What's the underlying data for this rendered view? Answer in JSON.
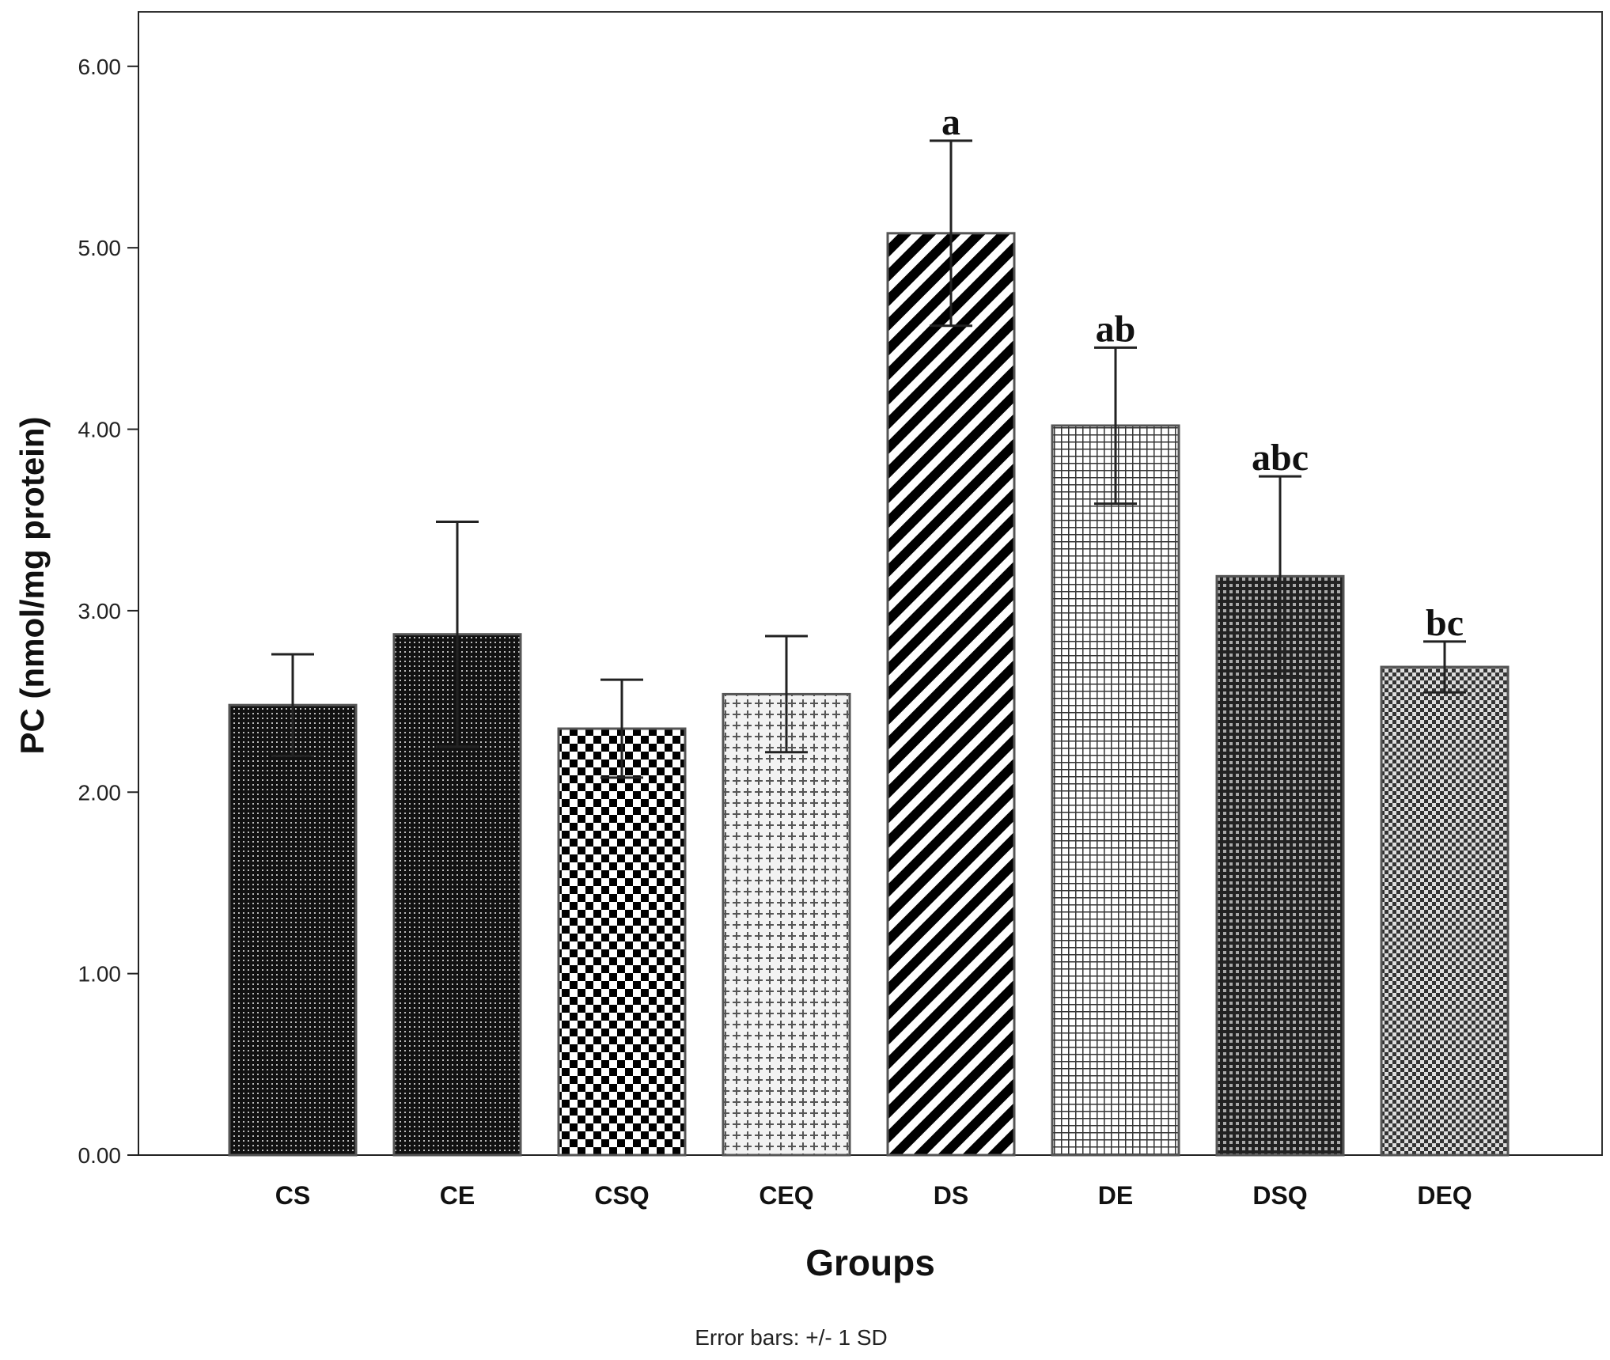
{
  "chart_data": {
    "type": "bar",
    "title": "",
    "xlabel": "Groups",
    "ylabel": "PC (nmol/mg protein)",
    "ylim": [
      0,
      6.3
    ],
    "yticks": [
      "0.00",
      "1.00",
      "2.00",
      "3.00",
      "4.00",
      "5.00",
      "6.00"
    ],
    "categories": [
      "CS",
      "CE",
      "CSQ",
      "CEQ",
      "DS",
      "DE",
      "DSQ",
      "DEQ"
    ],
    "values": [
      2.48,
      2.87,
      2.35,
      2.54,
      5.08,
      4.02,
      3.19,
      2.69
    ],
    "error_sd": [
      0.28,
      0.62,
      0.27,
      0.32,
      0.51,
      0.43,
      0.55,
      0.14
    ],
    "significance_labels": [
      "",
      "",
      "",
      "",
      "a",
      "ab",
      "abc",
      "bc"
    ],
    "fill_patterns": [
      "dark-dots",
      "dark-dots",
      "checker",
      "light-cross",
      "diagonal-stripes",
      "grid",
      "dark-grid",
      "diamond-check"
    ],
    "footnote": "Error bars: +/- 1 SD"
  }
}
